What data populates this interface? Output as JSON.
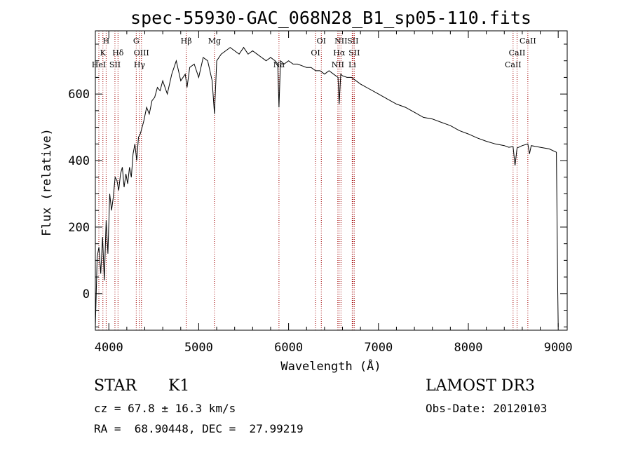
{
  "chart_data": {
    "type": "line",
    "title": "spec-55930-GAC_068N28_B1_sp05-110.fits",
    "xlabel": "Wavelength (Å)",
    "ylabel": "Flux (relative)",
    "xlim": [
      3850,
      9100
    ],
    "ylim": [
      -110,
      790
    ],
    "xticks": [
      4000,
      5000,
      6000,
      7000,
      8000,
      9000
    ],
    "yticks": [
      0,
      200,
      400,
      600
    ],
    "series": [
      {
        "name": "flux",
        "x": [
          3850,
          3870,
          3890,
          3910,
          3930,
          3950,
          3970,
          3990,
          4010,
          4030,
          4050,
          4070,
          4090,
          4110,
          4130,
          4150,
          4170,
          4190,
          4210,
          4230,
          4250,
          4270,
          4290,
          4310,
          4330,
          4350,
          4370,
          4390,
          4420,
          4450,
          4480,
          4510,
          4540,
          4570,
          4600,
          4650,
          4700,
          4750,
          4800,
          4850,
          4870,
          4900,
          4950,
          5000,
          5050,
          5100,
          5150,
          5175,
          5200,
          5250,
          5300,
          5350,
          5400,
          5450,
          5500,
          5550,
          5600,
          5650,
          5700,
          5750,
          5800,
          5850,
          5880,
          5893,
          5910,
          5950,
          6000,
          6050,
          6100,
          6150,
          6200,
          6250,
          6300,
          6350,
          6400,
          6450,
          6500,
          6550,
          6563,
          6580,
          6600,
          6650,
          6700,
          6750,
          6800,
          6900,
          7000,
          7100,
          7200,
          7300,
          7400,
          7500,
          7600,
          7700,
          7800,
          7900,
          8000,
          8100,
          8200,
          8300,
          8400,
          8450,
          8498,
          8520,
          8542,
          8560,
          8600,
          8662,
          8680,
          8700,
          8800,
          8900,
          8980,
          8995,
          9000
        ],
        "y": [
          -100,
          110,
          140,
          60,
          170,
          40,
          220,
          120,
          300,
          250,
          290,
          350,
          340,
          310,
          360,
          380,
          320,
          360,
          330,
          380,
          350,
          420,
          450,
          400,
          470,
          480,
          500,
          520,
          560,
          540,
          580,
          590,
          620,
          610,
          640,
          600,
          660,
          700,
          640,
          660,
          620,
          680,
          690,
          650,
          710,
          700,
          640,
          540,
          700,
          720,
          730,
          740,
          730,
          720,
          740,
          720,
          730,
          720,
          710,
          700,
          710,
          700,
          690,
          560,
          700,
          690,
          700,
          690,
          690,
          685,
          680,
          680,
          670,
          670,
          660,
          670,
          660,
          650,
          570,
          660,
          655,
          650,
          650,
          640,
          630,
          615,
          600,
          585,
          570,
          560,
          545,
          530,
          525,
          515,
          505,
          490,
          480,
          468,
          458,
          450,
          445,
          440,
          442,
          385,
          438,
          440,
          445,
          450,
          420,
          445,
          440,
          435,
          425,
          10,
          -100
        ]
      }
    ],
    "line_markers": [
      {
        "label": "H",
        "wavelength": 3970,
        "row": 1
      },
      {
        "label": "K",
        "wavelength": 3934,
        "row": 2
      },
      {
        "label": "HeI",
        "wavelength": 3889,
        "row": 3
      },
      {
        "label": "SII",
        "wavelength": 4068,
        "row": 3
      },
      {
        "label": "Hδ",
        "wavelength": 4102,
        "row": 2
      },
      {
        "label": "G",
        "wavelength": 4305,
        "row": 1
      },
      {
        "label": "OIII",
        "wavelength": 4363,
        "row": 2
      },
      {
        "label": "Hγ",
        "wavelength": 4341,
        "row": 3
      },
      {
        "label": "Hβ",
        "wavelength": 4861,
        "row": 1
      },
      {
        "label": "Mg",
        "wavelength": 5175,
        "row": 1
      },
      {
        "label": "Na",
        "wavelength": 5893,
        "row": 3
      },
      {
        "label": "OI",
        "wavelength": 6300,
        "row": 2
      },
      {
        "label": "OI",
        "wavelength": 6364,
        "row": 1
      },
      {
        "label": "NII",
        "wavelength": 6548,
        "row": 3
      },
      {
        "label": "Hα",
        "wavelength": 6563,
        "row": 2
      },
      {
        "label": "NII",
        "wavelength": 6583,
        "row": 1
      },
      {
        "label": "SII",
        "wavelength": 6716,
        "row": 1
      },
      {
        "label": "SII",
        "wavelength": 6731,
        "row": 2
      },
      {
        "label": "Li",
        "wavelength": 6708,
        "row": 3
      },
      {
        "label": "CaII",
        "wavelength": 8498,
        "row": 3
      },
      {
        "label": "CaII",
        "wavelength": 8542,
        "row": 2
      },
      {
        "label": "CaII",
        "wavelength": 8662,
        "row": 1
      }
    ]
  },
  "info": {
    "class": "STAR",
    "subclass": "K1",
    "survey": "LAMOST DR3",
    "cz": "cz = 67.8 ± 16.3 km/s",
    "obs_date": "Obs-Date: 20120103",
    "radec": "RA =  68.90448, DEC =  27.99219"
  }
}
